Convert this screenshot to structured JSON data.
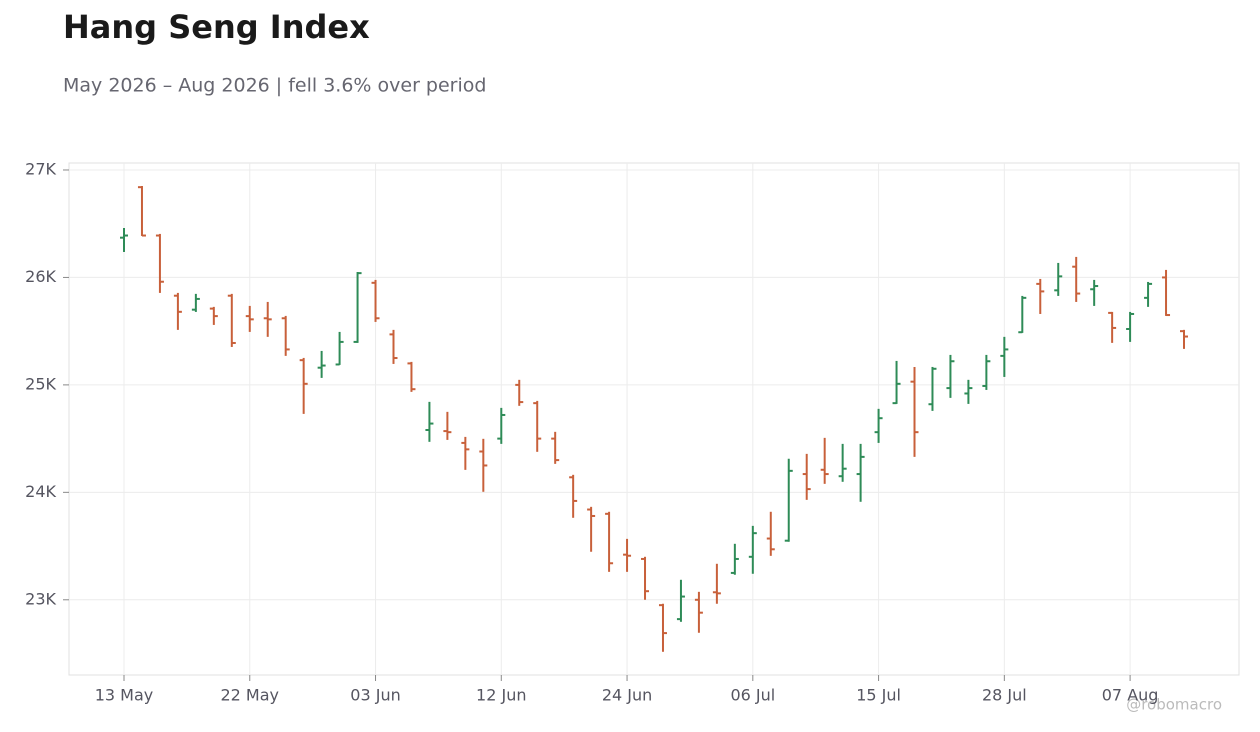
{
  "chart_data": {
    "type": "ohlc",
    "title": "Hang Seng Index",
    "subtitle": "May 2026 – Aug 2026 | fell 3.6% over period",
    "watermark": "@robomacro",
    "categories": [
      "13 May",
      null,
      null,
      null,
      null,
      null,
      null,
      "22 May",
      null,
      null,
      null,
      null,
      null,
      null,
      "03 Jun",
      null,
      null,
      null,
      null,
      null,
      null,
      "12 Jun",
      null,
      null,
      null,
      null,
      null,
      null,
      "24 Jun",
      null,
      null,
      null,
      null,
      null,
      null,
      "06 Jul",
      null,
      null,
      null,
      null,
      null,
      null,
      "15 Jul",
      null,
      null,
      null,
      null,
      null,
      null,
      "28 Jul",
      null,
      null,
      null,
      null,
      null,
      null,
      "07 Aug",
      null,
      null,
      null
    ],
    "open": [
      26370,
      26840,
      26390,
      25830,
      25700,
      25710,
      25830,
      25640,
      25620,
      25620,
      25230,
      25160,
      25190,
      25400,
      25950,
      25470,
      25200,
      24580,
      24570,
      24460,
      24380,
      24500,
      25000,
      24830,
      24500,
      24140,
      23840,
      23800,
      23420,
      23380,
      22950,
      22820,
      23000,
      23070,
      23250,
      23400,
      23570,
      23550,
      24170,
      24210,
      24150,
      24170,
      24560,
      24830,
      25030,
      24820,
      24970,
      24920,
      24990,
      25270,
      25490,
      25940,
      25880,
      26100,
      25890,
      25670,
      25520,
      25810,
      26000,
      25500
    ],
    "high": [
      26460,
      26851,
      26405,
      25856,
      25847,
      25726,
      25847,
      25735,
      25772,
      25642,
      25251,
      25316,
      25493,
      26051,
      25977,
      25512,
      25214,
      24842,
      24749,
      24516,
      24498,
      24786,
      25047,
      24851,
      24563,
      24163,
      23865,
      23819,
      23567,
      23400,
      22963,
      23186,
      23074,
      23335,
      23521,
      23688,
      23819,
      24312,
      24358,
      24507,
      24451,
      24451,
      24777,
      25223,
      25167,
      25167,
      25279,
      25047,
      25279,
      25447,
      25828,
      25986,
      26135,
      26191,
      25977,
      25679,
      25679,
      25958,
      26070,
      25512
    ],
    "low": [
      26237,
      26386,
      25856,
      25512,
      25679,
      25558,
      25353,
      25493,
      25447,
      25270,
      24730,
      25065,
      25186,
      25391,
      25586,
      25195,
      24935,
      24470,
      24488,
      24209,
      24005,
      24451,
      24805,
      24377,
      24265,
      23763,
      23447,
      23260,
      23260,
      23000,
      22516,
      22795,
      22693,
      22963,
      23233,
      23242,
      23409,
      23540,
      23930,
      24079,
      24098,
      23912,
      24460,
      24823,
      24330,
      24758,
      24879,
      24823,
      24953,
      25074,
      25484,
      25660,
      25828,
      25772,
      25735,
      25391,
      25400,
      25726,
      25642,
      25335
    ],
    "close": [
      26390,
      26390,
      25960,
      25680,
      25800,
      25640,
      25390,
      25610,
      25610,
      25330,
      25010,
      25180,
      25400,
      26040,
      25620,
      25250,
      24960,
      24640,
      24560,
      24400,
      24250,
      24720,
      24840,
      24500,
      24300,
      23920,
      23780,
      23340,
      23410,
      23080,
      22690,
      23030,
      22880,
      23060,
      23380,
      23620,
      23470,
      24200,
      24030,
      24170,
      24220,
      24330,
      24690,
      25010,
      24560,
      25150,
      25220,
      24970,
      25220,
      25330,
      25810,
      25870,
      26010,
      25850,
      25920,
      25530,
      25660,
      25940,
      25650,
      25450
    ],
    "up_color": "#2e8b57",
    "down_color": "#c8603a",
    "ylim": [
      22300,
      27065
    ],
    "yticks": [
      {
        "value": 23000,
        "label": "23K"
      },
      {
        "value": 24000,
        "label": "24K"
      },
      {
        "value": 25000,
        "label": "25K"
      },
      {
        "value": 26000,
        "label": "26K"
      },
      {
        "value": 27000,
        "label": "27K"
      }
    ],
    "grid": true
  }
}
